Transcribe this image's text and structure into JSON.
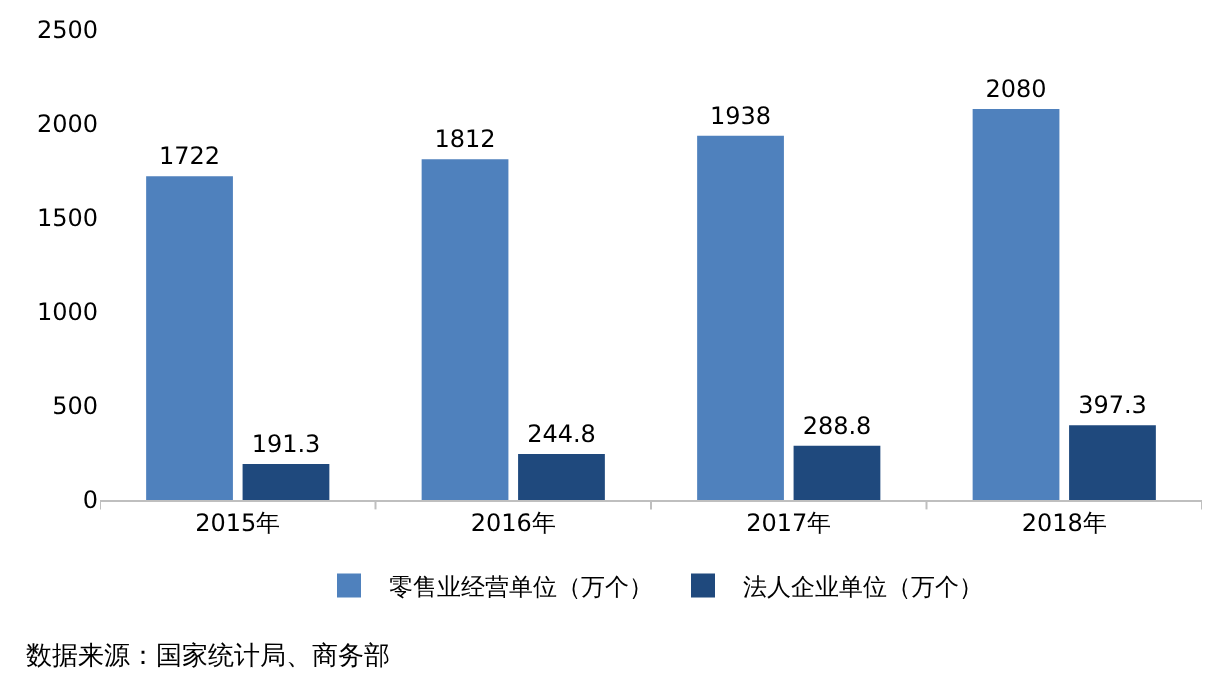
{
  "chart_data": {
    "type": "bar",
    "categories": [
      "2015年",
      "2016年",
      "2017年",
      "2018年"
    ],
    "series": [
      {
        "name": "零售业经营单位（万个）",
        "color": "#4f81bd",
        "values": [
          1722,
          1812,
          1938,
          2080
        ]
      },
      {
        "name": "法人企业单位（万个）",
        "color": "#1f497d",
        "values": [
          191.3,
          244.8,
          288.8,
          397.3
        ]
      }
    ],
    "ylim": [
      0,
      2500
    ],
    "yticks": [
      0,
      500,
      1000,
      1500,
      2000,
      2500
    ],
    "data_labels": true,
    "legend": "bottom",
    "annotations": [
      "数据来源：国家统计局、商务部"
    ]
  }
}
